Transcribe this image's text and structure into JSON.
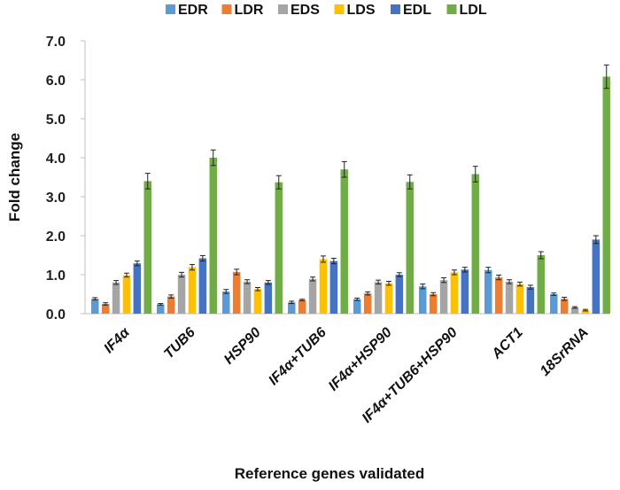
{
  "chart_data": {
    "type": "bar",
    "title": "",
    "xlabel": "Reference genes validated",
    "ylabel": "Fold change",
    "ylim": [
      0,
      7.0
    ],
    "yticks": [
      "0.0",
      "1.0",
      "2.0",
      "3.0",
      "4.0",
      "5.0",
      "6.0",
      "7.0"
    ],
    "grid": false,
    "legend_position": "top",
    "categories": [
      "IF4α",
      "TUB6",
      "HSP90",
      "IF4α+TUB6",
      "IF4α+HSP90",
      "IF4α+TUB6+HSP90",
      "ACT1",
      "18SrRNA"
    ],
    "series": [
      {
        "name": "EDR",
        "color": "#5b9bd5",
        "values": [
          0.38,
          0.24,
          0.57,
          0.29,
          0.37,
          0.7,
          1.12,
          0.5
        ],
        "errors": [
          0.03,
          0.02,
          0.05,
          0.03,
          0.03,
          0.06,
          0.07,
          0.03
        ]
      },
      {
        "name": "LDR",
        "color": "#ed7d31",
        "values": [
          0.25,
          0.44,
          1.07,
          0.35,
          0.52,
          0.5,
          0.93,
          0.38
        ],
        "errors": [
          0.03,
          0.04,
          0.07,
          0.02,
          0.04,
          0.04,
          0.06,
          0.04
        ]
      },
      {
        "name": "EDS",
        "color": "#a5a5a5",
        "values": [
          0.8,
          1.0,
          0.82,
          0.89,
          0.81,
          0.86,
          0.82,
          0.16
        ],
        "errors": [
          0.05,
          0.06,
          0.05,
          0.05,
          0.05,
          0.06,
          0.05,
          0.02
        ]
      },
      {
        "name": "LDS",
        "color": "#ffc000",
        "values": [
          0.99,
          1.19,
          0.63,
          1.4,
          0.78,
          1.06,
          0.76,
          0.09
        ],
        "errors": [
          0.05,
          0.07,
          0.04,
          0.08,
          0.05,
          0.06,
          0.05,
          0.02
        ]
      },
      {
        "name": "EDL",
        "color": "#4472c4",
        "values": [
          1.29,
          1.42,
          0.8,
          1.35,
          1.0,
          1.13,
          0.68,
          1.9
        ],
        "errors": [
          0.06,
          0.07,
          0.05,
          0.07,
          0.05,
          0.06,
          0.05,
          0.1
        ]
      },
      {
        "name": "LDL",
        "color": "#70ad47",
        "values": [
          3.4,
          4.0,
          3.37,
          3.7,
          3.38,
          3.58,
          1.5,
          6.08
        ],
        "errors": [
          0.2,
          0.2,
          0.17,
          0.2,
          0.18,
          0.2,
          0.09,
          0.3
        ]
      }
    ]
  }
}
